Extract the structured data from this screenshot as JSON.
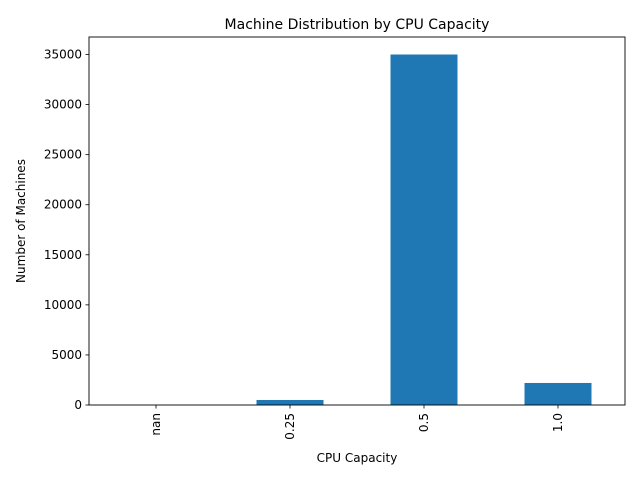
{
  "chart_data": {
    "type": "bar",
    "title": "Machine Distribution by CPU Capacity",
    "xlabel": "CPU Capacity",
    "ylabel": "Number of Machines",
    "categories": [
      "nan",
      "0.25",
      "0.5",
      "1.0"
    ],
    "values": [
      0,
      500,
      35000,
      2200
    ],
    "ylim": [
      0,
      36750
    ],
    "yticks": [
      0,
      5000,
      10000,
      15000,
      20000,
      25000,
      30000,
      35000
    ],
    "ytick_labels": [
      "0",
      "5000",
      "10000",
      "15000",
      "20000",
      "25000",
      "30000",
      "35000"
    ],
    "bar_color": "#1f77b4",
    "grid": false,
    "legend": "none"
  }
}
